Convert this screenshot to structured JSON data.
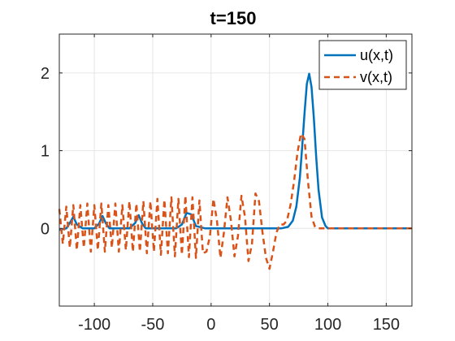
{
  "chart_data": {
    "type": "line",
    "title": "t=150",
    "xlabel": "",
    "ylabel": "",
    "xlim": [
      -130,
      172
    ],
    "ylim": [
      -1,
      2.5
    ],
    "xticks": [
      -100,
      -50,
      0,
      50,
      100,
      150
    ],
    "xtick_labels": [
      "-100",
      "-50",
      "0",
      "50",
      "100",
      "150"
    ],
    "yticks": [
      0,
      1,
      2
    ],
    "ytick_labels": [
      "0",
      "1",
      "2"
    ],
    "grid": true,
    "legend_position": "top-right",
    "series": [
      {
        "name": "u(x,t)",
        "style": "solid",
        "color": "#0072BD",
        "x": [
          -130,
          -124,
          -121,
          -118,
          -115,
          -110,
          -100,
          -96,
          -93,
          -90,
          -87,
          -80,
          -70,
          -65,
          -62,
          -59,
          -56,
          -45,
          -30,
          -25,
          -21,
          -17,
          -13,
          -5,
          10,
          40,
          60,
          66,
          70,
          73,
          76,
          78,
          80,
          82,
          84,
          86,
          88,
          90,
          92,
          95,
          98,
          100,
          105,
          130,
          172
        ],
        "y": [
          -0.02,
          0.0,
          0.07,
          0.15,
          0.05,
          0.0,
          0.0,
          0.06,
          0.16,
          0.06,
          0.0,
          0.0,
          0.0,
          0.07,
          0.17,
          0.06,
          0.0,
          0.0,
          0.0,
          0.05,
          0.2,
          0.18,
          0.03,
          0.0,
          0.0,
          0.0,
          0.0,
          0.02,
          0.1,
          0.28,
          0.65,
          1.05,
          1.48,
          1.86,
          1.99,
          1.82,
          1.42,
          0.92,
          0.5,
          0.14,
          0.03,
          0.0,
          0.0,
          0.0,
          0.0
        ]
      },
      {
        "name": "v(x,t)",
        "style": "dashed",
        "color": "#D95319",
        "x": [
          -130,
          -127,
          -124,
          -121,
          -118,
          -115,
          -112,
          -109,
          -106,
          -103,
          -100,
          -97,
          -94,
          -91,
          -88,
          -85,
          -82,
          -79,
          -76,
          -73,
          -70,
          -67,
          -64,
          -61,
          -58,
          -55,
          -52,
          -49,
          -46,
          -43,
          -40,
          -37,
          -34,
          -31,
          -28,
          -25,
          -22,
          -19,
          -16,
          -13,
          -10,
          -7,
          -4,
          -1,
          2,
          5,
          8,
          11,
          14,
          17,
          20,
          23,
          26,
          29,
          32,
          35,
          38,
          41,
          44,
          47,
          50,
          53,
          56,
          59,
          62,
          65,
          68,
          71,
          74,
          77,
          80,
          83,
          86,
          89,
          92,
          95,
          98,
          101,
          110,
          130,
          172
        ],
        "y": [
          0.25,
          -0.2,
          0.28,
          -0.25,
          0.3,
          -0.28,
          0.3,
          -0.25,
          0.32,
          -0.3,
          0.3,
          -0.28,
          0.32,
          -0.3,
          0.3,
          -0.25,
          0.32,
          -0.3,
          0.3,
          -0.28,
          0.35,
          -0.3,
          0.32,
          -0.3,
          0.35,
          -0.32,
          0.35,
          -0.3,
          0.38,
          -0.34,
          0.37,
          -0.32,
          0.4,
          -0.36,
          0.38,
          -0.34,
          0.42,
          -0.37,
          0.4,
          -0.38,
          0.36,
          -0.32,
          -0.3,
          -0.1,
          0.38,
          0.1,
          -0.38,
          -0.05,
          0.4,
          0.1,
          -0.36,
          -0.1,
          0.42,
          0.15,
          -0.42,
          -0.2,
          0.45,
          0.35,
          -0.05,
          -0.38,
          -0.52,
          -0.3,
          -0.05,
          0.05,
          0.05,
          0.1,
          0.3,
          0.6,
          0.98,
          1.22,
          1.15,
          0.6,
          0.15,
          0.02,
          0.0,
          0.0,
          0.0,
          0.0,
          0.0,
          0.0,
          0.0
        ]
      }
    ]
  }
}
